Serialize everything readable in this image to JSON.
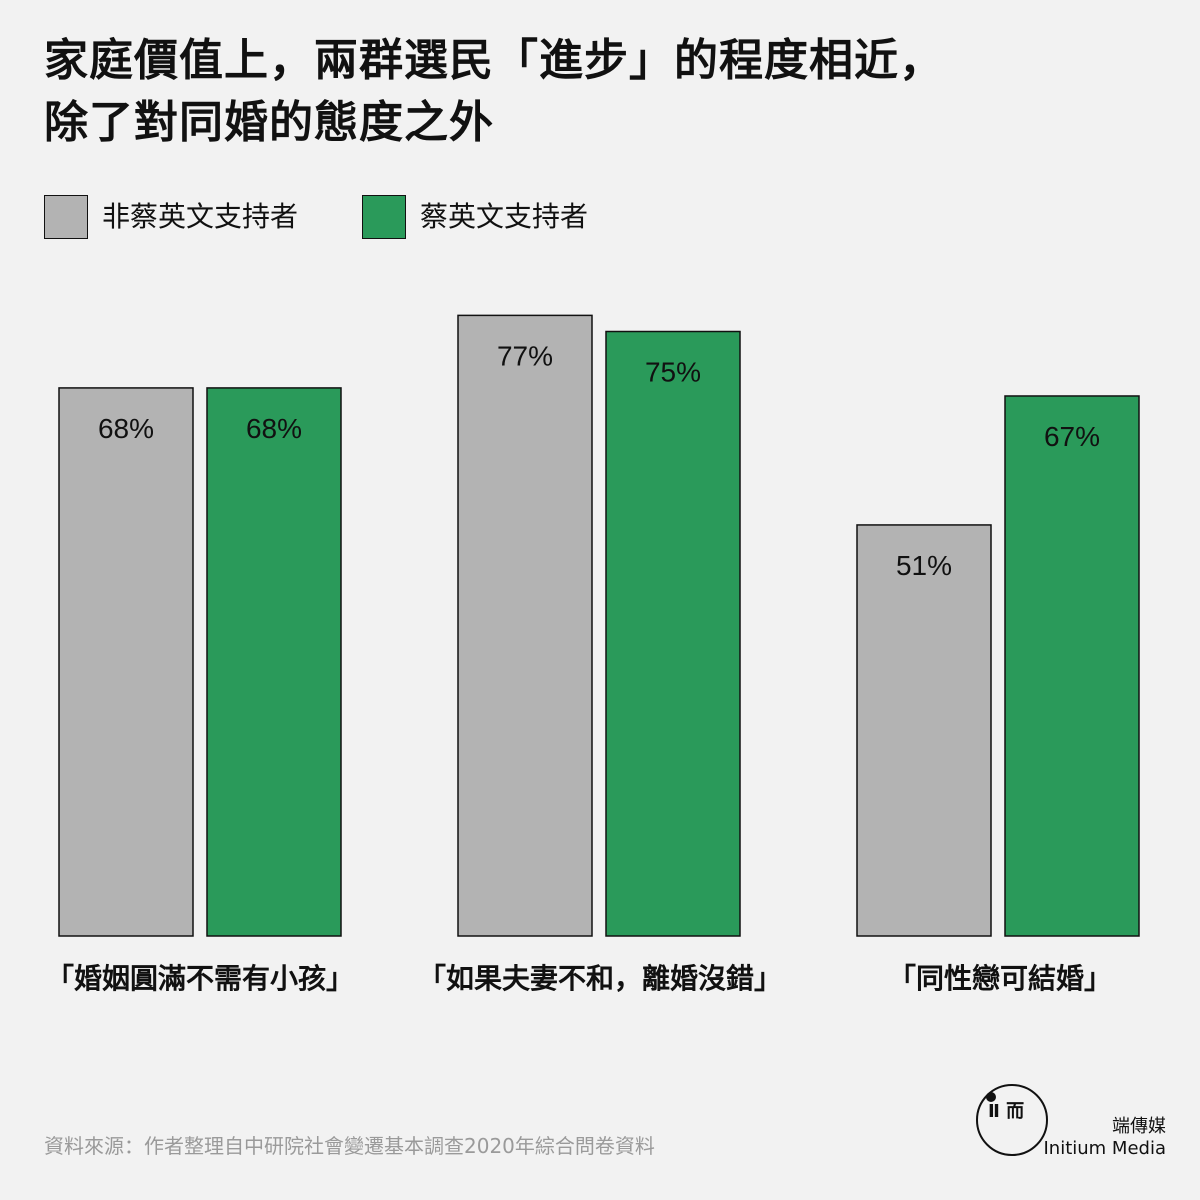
{
  "title_lines": [
    "家庭價值上，兩群選民「進步」的程度相近，",
    "除了對同婚的態度之外"
  ],
  "legend": [
    {
      "label": "非蔡英文支持者",
      "color": "#b3b3b3"
    },
    {
      "label": "蔡英文支持者",
      "color": "#2a9a5a"
    }
  ],
  "chart_data": {
    "type": "bar",
    "title": "家庭價值上，兩群選民「進步」的程度相近，除了對同婚的態度之外",
    "categories": [
      "「婚姻圓滿不需有小孩」",
      "「如果夫妻不和，離婚沒錯」",
      "「同性戀可結婚」"
    ],
    "series": [
      {
        "name": "非蔡英文支持者",
        "values": [
          68,
          77,
          51
        ],
        "labels": [
          "68%",
          "77%",
          "51%"
        ],
        "color": "#b3b3b3"
      },
      {
        "name": "蔡英文支持者",
        "values": [
          68,
          75,
          67
        ],
        "labels": [
          "68%",
          "75%",
          "67%"
        ],
        "color": "#2a9a5a"
      }
    ],
    "ylim": [
      0,
      100
    ],
    "grid": false,
    "legend_position": "top-left"
  },
  "source": "資料來源：作者整理自中研院社會變遷基本調查2020年綜合問卷資料",
  "logo": {
    "mark": "Ⅱ 而",
    "name_cn": "端傳媒",
    "name_en": "Initium Media"
  }
}
